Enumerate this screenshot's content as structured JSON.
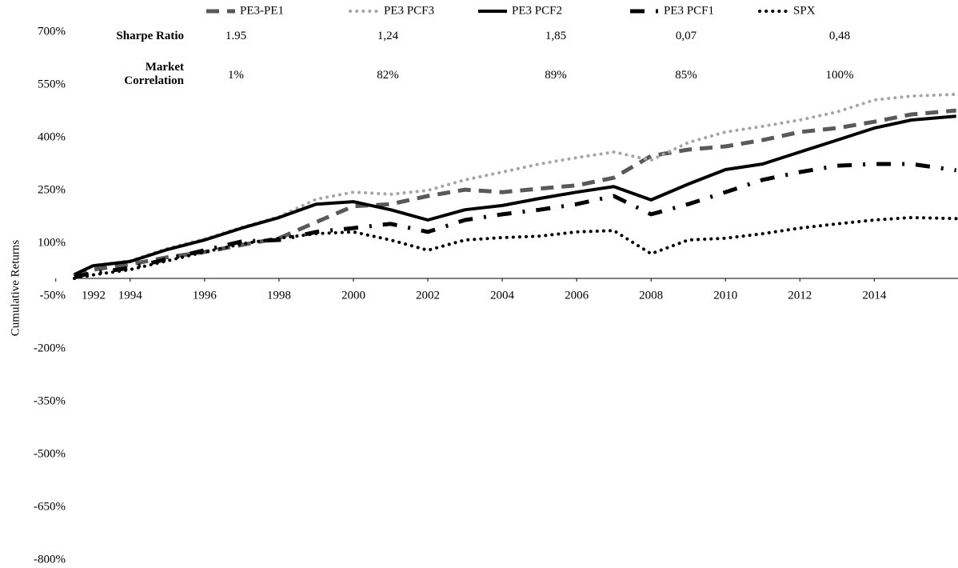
{
  "chart_data": {
    "type": "line",
    "y_label": "Cumulative Returns",
    "x": [
      1992.5,
      1993,
      1994,
      1995,
      1996,
      1997,
      1998,
      1999,
      2000,
      2001,
      2002,
      2003,
      2004,
      2005,
      2006,
      2007,
      2008,
      2009,
      2010,
      2011,
      2012,
      2013,
      2014,
      2015,
      2016.2
    ],
    "xlim": [
      1992.5,
      2016.25
    ],
    "xticks": [
      1992,
      1994,
      1996,
      1998,
      2000,
      2002,
      2004,
      2006,
      2008,
      2010,
      2012,
      2014
    ],
    "ylim": [
      -800,
      700
    ],
    "yticks": [
      {
        "value": -800,
        "label": "-800%"
      },
      {
        "value": -650,
        "label": "-650%"
      },
      {
        "value": -500,
        "label": "-500%"
      },
      {
        "value": -350,
        "label": "-350%"
      },
      {
        "value": -200,
        "label": "-200%"
      },
      {
        "value": -50,
        "label": "-50%"
      },
      {
        "value": 100,
        "label": "100%"
      },
      {
        "value": 250,
        "label": "250%"
      },
      {
        "value": 400,
        "label": "400%"
      },
      {
        "value": 550,
        "label": "550%"
      },
      {
        "value": 700,
        "label": "700%"
      }
    ],
    "series": [
      {
        "name": "PE3-PE1",
        "color": "#595959",
        "style": "dashed",
        "values": [
          10,
          25,
          40,
          60,
          75,
          95,
          114,
          160,
          205,
          211,
          234,
          252,
          245,
          255,
          264,
          286,
          348,
          366,
          375,
          393,
          416,
          427,
          445,
          466,
          477
        ]
      },
      {
        "name": "PE3 PCF3",
        "color": "#a6a6a6",
        "style": "dotted",
        "values": [
          11,
          36,
          50,
          85,
          112,
          145,
          175,
          225,
          245,
          239,
          250,
          280,
          302,
          325,
          343,
          359,
          336,
          386,
          416,
          432,
          450,
          473,
          507,
          518,
          523
        ]
      },
      {
        "name": "PE3 PCF2",
        "color": "#000000",
        "style": "solid",
        "values": [
          11,
          36,
          48,
          82,
          109,
          143,
          173,
          211,
          218,
          195,
          166,
          195,
          207,
          227,
          245,
          261,
          223,
          268,
          309,
          325,
          359,
          393,
          427,
          450,
          461
        ]
      },
      {
        "name": "PE3 PCF1",
        "color": "#000000",
        "style": "dashdot",
        "values": [
          5,
          15,
          30,
          55,
          80,
          105,
          109,
          132,
          143,
          155,
          132,
          166,
          182,
          195,
          211,
          234,
          182,
          211,
          245,
          280,
          302,
          320,
          325,
          325,
          307
        ]
      },
      {
        "name": "SPX",
        "color": "#000000",
        "style": "dotted",
        "values": [
          0,
          10,
          25,
          50,
          75,
          98,
          114,
          127,
          132,
          109,
          80,
          109,
          116,
          120,
          132,
          136,
          70,
          109,
          114,
          127,
          143,
          155,
          166,
          173,
          170
        ]
      }
    ],
    "stats_table": {
      "rows": [
        {
          "label": "Sharpe Ratio",
          "values": [
            "1.95",
            "1,24",
            "1,85",
            "0,07",
            "0,48"
          ]
        },
        {
          "label": "Market Correlation",
          "values": [
            "1%",
            "82%",
            "89%",
            "85%",
            "100%"
          ]
        }
      ]
    }
  }
}
